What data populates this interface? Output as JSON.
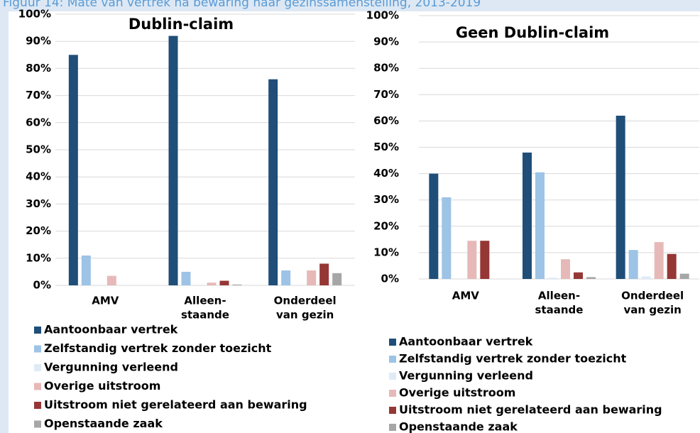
{
  "title": "Figuur 14: Mate van vertrek na bewaring naar gezinssamenstelling, 2013-2019",
  "chart_data": [
    {
      "type": "bar",
      "title": "Dublin-claim",
      "categories": [
        [
          "AMV"
        ],
        [
          "Alleen-",
          "staande"
        ],
        [
          "Onderdeel",
          "van gezin"
        ]
      ],
      "series": [
        {
          "name": "Aantoonbaar vertrek",
          "color": "#1f4e79",
          "values": [
            85,
            92,
            76
          ]
        },
        {
          "name": "Zelfstandig vertrek zonder toezicht",
          "color": "#9dc3e6",
          "values": [
            11,
            5,
            5.5
          ]
        },
        {
          "name": "Vergunning verleend",
          "color": "#deebf7",
          "values": [
            0,
            0,
            0
          ]
        },
        {
          "name": "Overige uitstroom",
          "color": "#e6b9b8",
          "values": [
            3.5,
            1,
            5.5
          ]
        },
        {
          "name": "Uitstroom niet gerelateerd aan bewaring",
          "color": "#953735",
          "values": [
            0,
            1.7,
            8
          ]
        },
        {
          "name": "Openstaande zaak",
          "color": "#a6a6a6",
          "values": [
            0,
            0.3,
            4.5
          ]
        }
      ],
      "ylim": [
        0,
        100
      ],
      "yticks": [
        {
          "value": 0,
          "label": "0%"
        },
        {
          "value": 10,
          "label": "10%"
        },
        {
          "value": 20,
          "label": "20%"
        },
        {
          "value": 30,
          "label": "30%"
        },
        {
          "value": 40,
          "label": "40%"
        },
        {
          "value": 50,
          "label": "50%"
        },
        {
          "value": 60,
          "label": "60%"
        },
        {
          "value": 70,
          "label": "70%"
        },
        {
          "value": 80,
          "label": "80%"
        },
        {
          "value": 90,
          "label": "90%"
        },
        {
          "value": 100,
          "label": "100%"
        }
      ],
      "grid": true,
      "legend": "bottom"
    },
    {
      "type": "bar",
      "title": "Geen Dublin-claim",
      "categories": [
        [
          "AMV"
        ],
        [
          "Alleen-",
          "staande"
        ],
        [
          "Onderdeel",
          "van gezin"
        ]
      ],
      "series": [
        {
          "name": "Aantoonbaar vertrek",
          "color": "#1f4e79",
          "values": [
            40,
            48,
            62
          ]
        },
        {
          "name": "Zelfstandig vertrek zonder toezicht",
          "color": "#9dc3e6",
          "values": [
            31,
            40.5,
            11
          ]
        },
        {
          "name": "Vergunning verleend",
          "color": "#deebf7",
          "values": [
            0,
            0.5,
            1
          ]
        },
        {
          "name": "Overige uitstroom",
          "color": "#e6b9b8",
          "values": [
            14.5,
            7.5,
            14
          ]
        },
        {
          "name": "Uitstroom niet gerelateerd aan bewaring",
          "color": "#953735",
          "values": [
            14.5,
            2.5,
            9.5
          ]
        },
        {
          "name": "Openstaande zaak",
          "color": "#a6a6a6",
          "values": [
            0,
            0.7,
            2
          ]
        }
      ],
      "ylim": [
        0,
        100
      ],
      "yticks": [
        {
          "value": 0,
          "label": "0%"
        },
        {
          "value": 10,
          "label": "10%"
        },
        {
          "value": 20,
          "label": "20%"
        },
        {
          "value": 30,
          "label": "30%"
        },
        {
          "value": 40,
          "label": "40%"
        },
        {
          "value": 50,
          "label": "50%"
        },
        {
          "value": 60,
          "label": "60%"
        },
        {
          "value": 70,
          "label": "70%"
        },
        {
          "value": 80,
          "label": "80%"
        },
        {
          "value": 90,
          "label": "90%"
        },
        {
          "value": 100,
          "label": "100%"
        }
      ],
      "grid": true,
      "legend": "bottom"
    }
  ]
}
